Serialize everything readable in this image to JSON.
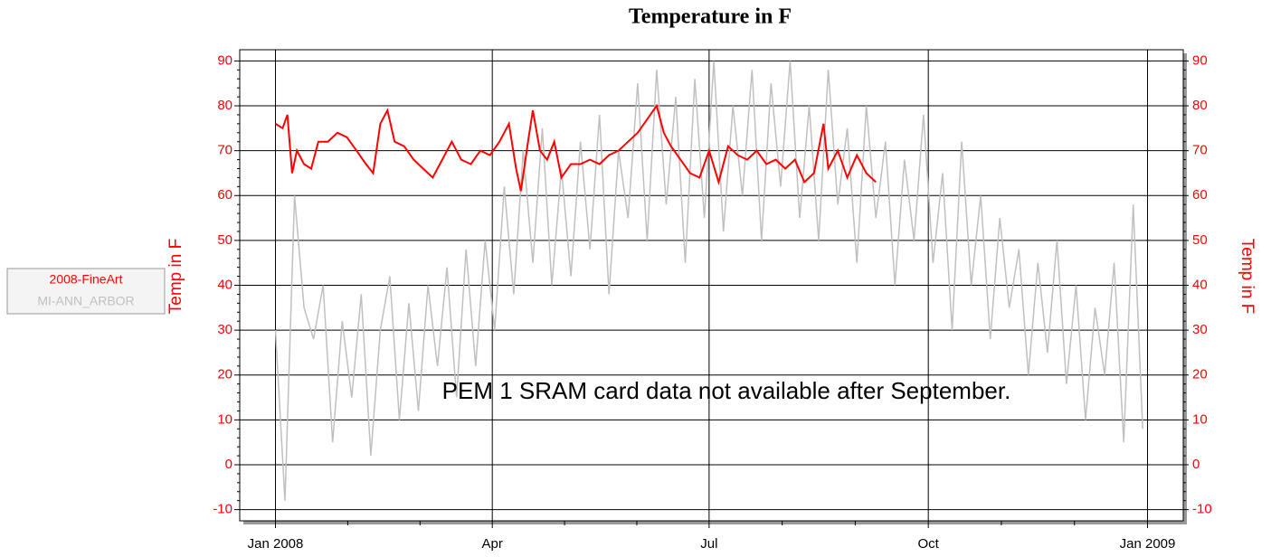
{
  "chart_data": {
    "type": "line",
    "title": "Temperature in F",
    "ylabel": "Temp in F",
    "y2label": "Temp in F",
    "annotation": "PEM 1 SRAM card data not available after September.",
    "xlim": [
      -15,
      381
    ],
    "xticks": [
      {
        "value": 0,
        "label": "Jan 2008"
      },
      {
        "value": 91,
        "label": "Apr"
      },
      {
        "value": 182,
        "label": "Jul"
      },
      {
        "value": 274,
        "label": "Oct"
      },
      {
        "value": 366,
        "label": "Jan 2009"
      }
    ],
    "ylim": [
      -12.5,
      92.5
    ],
    "yticks": [
      -10,
      0,
      10,
      20,
      30,
      40,
      50,
      60,
      70,
      80,
      90
    ],
    "y2lim": [
      -12.5,
      92.5
    ],
    "y2ticks": [
      -10,
      0,
      10,
      20,
      30,
      40,
      50,
      60,
      70,
      80,
      90
    ],
    "grid": true,
    "legend": "left",
    "series": [
      {
        "name": "MI-ANN_ARBOR",
        "color": "#c0c0c0",
        "x": [
          0,
          4,
          8,
          12,
          16,
          20,
          24,
          28,
          32,
          36,
          40,
          44,
          48,
          52,
          56,
          60,
          64,
          68,
          72,
          76,
          80,
          84,
          88,
          92,
          96,
          100,
          104,
          108,
          112,
          116,
          120,
          124,
          128,
          132,
          136,
          140,
          144,
          148,
          152,
          156,
          160,
          164,
          168,
          172,
          176,
          180,
          184,
          188,
          192,
          196,
          200,
          204,
          208,
          212,
          216,
          220,
          224,
          228,
          232,
          236,
          240,
          244,
          248,
          252,
          256,
          260,
          264,
          268,
          272,
          276,
          280,
          284,
          288,
          292,
          296,
          300,
          304,
          308,
          312,
          316,
          320,
          324,
          328,
          332,
          336,
          340,
          344,
          348,
          352,
          356,
          360,
          364
        ],
        "values": [
          30,
          -8,
          60,
          35,
          28,
          40,
          5,
          32,
          15,
          38,
          2,
          30,
          42,
          10,
          36,
          12,
          40,
          22,
          44,
          15,
          48,
          22,
          50,
          30,
          62,
          38,
          70,
          45,
          75,
          40,
          66,
          42,
          72,
          48,
          78,
          38,
          70,
          55,
          85,
          50,
          88,
          58,
          82,
          45,
          86,
          55,
          90,
          52,
          80,
          60,
          88,
          50,
          85,
          62,
          90,
          55,
          80,
          50,
          88,
          58,
          75,
          45,
          80,
          55,
          72,
          40,
          68,
          50,
          78,
          45,
          65,
          30,
          72,
          40,
          60,
          28,
          55,
          35,
          48,
          20,
          45,
          25,
          50,
          18,
          40,
          10,
          35,
          20,
          45,
          5,
          58,
          8
        ]
      },
      {
        "name": "2008-FineArt",
        "color": "#ff0000",
        "x": [
          0,
          3,
          5,
          7,
          9,
          12,
          15,
          18,
          22,
          26,
          30,
          34,
          38,
          41,
          44,
          47,
          50,
          54,
          58,
          62,
          66,
          70,
          74,
          78,
          82,
          86,
          90,
          94,
          98,
          101,
          103,
          106,
          108,
          111,
          114,
          117,
          120,
          124,
          128,
          132,
          136,
          140,
          144,
          148,
          152,
          156,
          160,
          163,
          166,
          170,
          174,
          178,
          182,
          186,
          190,
          194,
          198,
          202,
          206,
          210,
          214,
          218,
          222,
          226,
          230,
          232,
          236,
          240,
          244,
          248,
          252
        ],
        "values": [
          76,
          75,
          78,
          65,
          70,
          67,
          66,
          72,
          72,
          74,
          73,
          70,
          67,
          65,
          76,
          79,
          72,
          71,
          68,
          66,
          64,
          68,
          72,
          68,
          67,
          70,
          69,
          72,
          76,
          66,
          61,
          72,
          79,
          70,
          68,
          72,
          64,
          67,
          67,
          68,
          67,
          69,
          70,
          72,
          74,
          77,
          80,
          74,
          71,
          68,
          65,
          64,
          70,
          63,
          71,
          69,
          68,
          70,
          67,
          68,
          66,
          68,
          63,
          65,
          76,
          66,
          70,
          64,
          69,
          65,
          63
        ]
      }
    ]
  }
}
